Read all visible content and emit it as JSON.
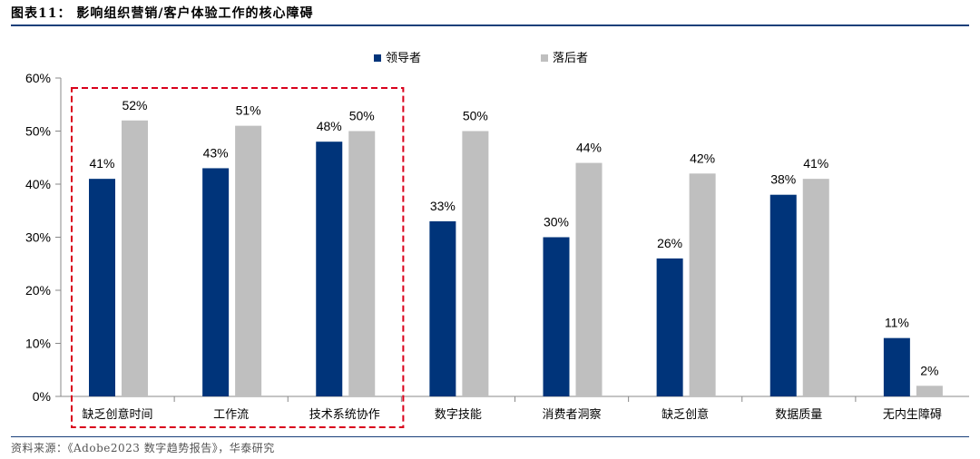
{
  "header": {
    "title": "图表11：  影响组织营销/客户体验工作的核心障碍"
  },
  "footer": {
    "source": "资料来源：《Adobe2023 数字趋势报告》，华泰研究"
  },
  "colors": {
    "leaders": "#00347a",
    "laggards": "#bfbfbf",
    "highlight_box": "#d9001b",
    "rule": "#1a3f7a"
  },
  "chart_data": {
    "type": "bar",
    "categories": [
      "缺乏创意时间",
      "工作流",
      "技术系统协作",
      "数字技能",
      "消费者洞察",
      "缺乏创意",
      "数据质量",
      "无内生障碍"
    ],
    "series": [
      {
        "name": "领导者",
        "values": [
          41,
          43,
          48,
          33,
          30,
          26,
          38,
          11
        ]
      },
      {
        "name": "落后者",
        "values": [
          52,
          51,
          50,
          50,
          44,
          42,
          41,
          2
        ]
      }
    ],
    "value_suffix": "%",
    "ylim": [
      0,
      60
    ],
    "yticks": [
      "0%",
      "10%",
      "20%",
      "30%",
      "40%",
      "50%",
      "60%"
    ],
    "grid": false,
    "legend_position": "top",
    "highlighted_categories": [
      0,
      1,
      2
    ]
  }
}
